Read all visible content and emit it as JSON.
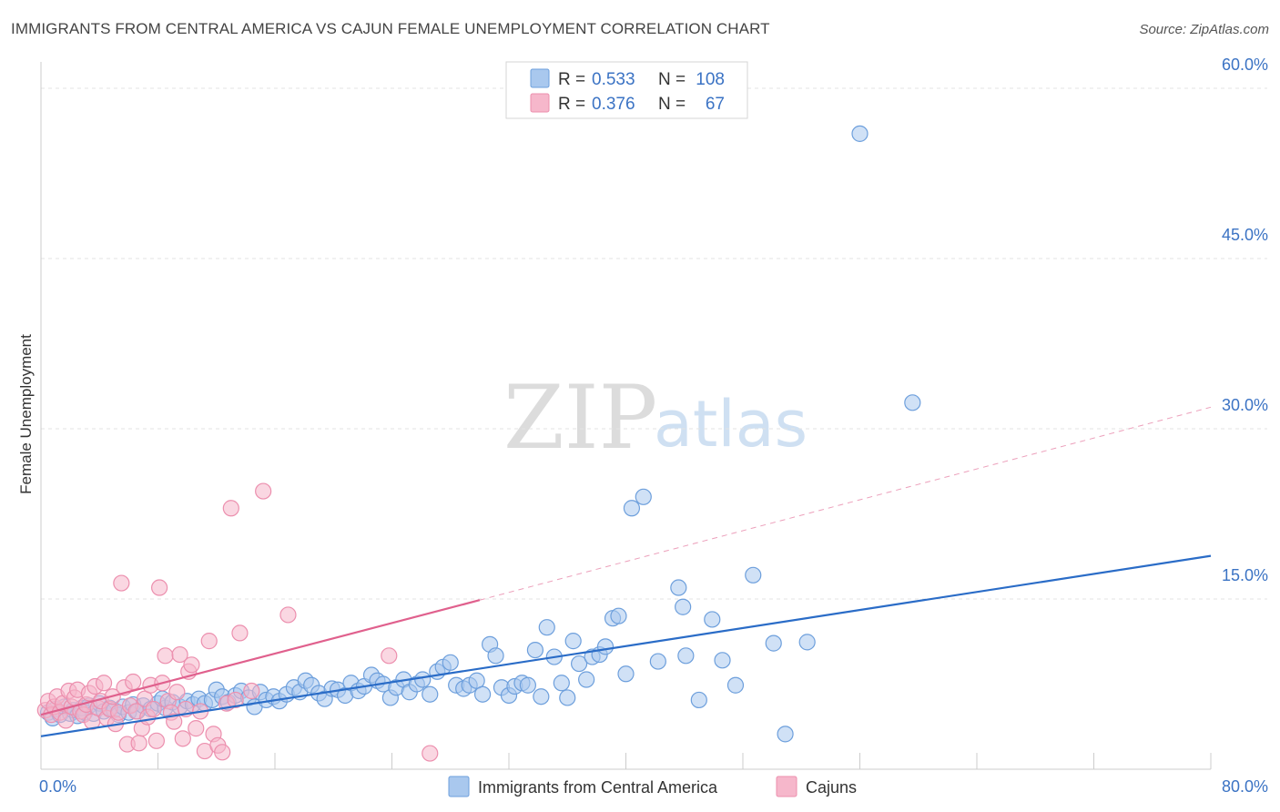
{
  "header": {
    "title": "IMMIGRANTS FROM CENTRAL AMERICA VS CAJUN FEMALE UNEMPLOYMENT CORRELATION CHART",
    "source": "Source: ZipAtlas.com"
  },
  "watermark": {
    "zip": "ZIP",
    "atlas": "atlas"
  },
  "colors": {
    "blue_fill": "#a9c8ee",
    "blue_stroke": "#6d9fdc",
    "blue_line": "#2a6cc7",
    "pink_fill": "#f6b7cb",
    "pink_stroke": "#ec8fae",
    "pink_line": "#e0608d",
    "tick_text": "#3b73c4",
    "grid": "#e3e3e3"
  },
  "legend": {
    "rows": [
      {
        "r_label": "R =",
        "r_value": "0.533",
        "n_label": "N =",
        "n_value": "108"
      },
      {
        "r_label": "R =",
        "r_value": "0.376",
        "n_label": "N =",
        "n_value": "67"
      }
    ]
  },
  "chart_data": {
    "type": "scatter",
    "ylabel": "Female Unemployment",
    "xlim": [
      0,
      80
    ],
    "ylim": [
      0,
      60
    ],
    "x_tick_labels": [
      {
        "value": 0,
        "label": "0.0%"
      },
      {
        "value": 80,
        "label": "80.0%"
      }
    ],
    "y_tick_labels": [
      {
        "value": 15,
        "label": "15.0%"
      },
      {
        "value": 30,
        "label": "30.0%"
      },
      {
        "value": 45,
        "label": "45.0%"
      },
      {
        "value": 60,
        "label": "60.0%"
      }
    ],
    "x_minor_ticks": [
      8,
      16,
      24,
      32,
      40,
      48,
      56,
      64,
      72,
      80
    ],
    "grid": true,
    "legend_position": "top-center",
    "series": [
      {
        "name": "Immigrants from Central America",
        "color": "#a9c8ee",
        "trend": {
          "x": [
            0,
            80
          ],
          "y": [
            2.9,
            18.8
          ],
          "style": "solid"
        },
        "points": [
          [
            0.5,
            5.0
          ],
          [
            0.8,
            4.5
          ],
          [
            1.0,
            5.3
          ],
          [
            1.3,
            4.8
          ],
          [
            1.6,
            5.5
          ],
          [
            2.0,
            4.9
          ],
          [
            2.2,
            5.2
          ],
          [
            2.5,
            4.7
          ],
          [
            2.8,
            5.4
          ],
          [
            3.0,
            5.0
          ],
          [
            3.3,
            5.6
          ],
          [
            3.6,
            4.9
          ],
          [
            4.0,
            5.8
          ],
          [
            4.3,
            5.1
          ],
          [
            4.7,
            5.4
          ],
          [
            5.0,
            5.2
          ],
          [
            5.3,
            4.8
          ],
          [
            5.6,
            5.5
          ],
          [
            6.0,
            5.0
          ],
          [
            6.3,
            5.7
          ],
          [
            6.6,
            5.1
          ],
          [
            7.0,
            5.6
          ],
          [
            7.5,
            5.3
          ],
          [
            8.0,
            5.8
          ],
          [
            8.5,
            5.4
          ],
          [
            8.3,
            6.2
          ],
          [
            9.0,
            5.9
          ],
          [
            9.5,
            5.5
          ],
          [
            10.0,
            6.0
          ],
          [
            10.4,
            5.7
          ],
          [
            10.8,
            6.2
          ],
          [
            11.2,
            5.8
          ],
          [
            11.7,
            6.1
          ],
          [
            12.0,
            7.0
          ],
          [
            12.4,
            6.4
          ],
          [
            12.8,
            5.9
          ],
          [
            13.3,
            6.5
          ],
          [
            13.7,
            6.9
          ],
          [
            14.2,
            6.3
          ],
          [
            14.6,
            5.5
          ],
          [
            15.0,
            6.8
          ],
          [
            15.4,
            6.1
          ],
          [
            15.9,
            6.4
          ],
          [
            16.3,
            6.0
          ],
          [
            16.8,
            6.6
          ],
          [
            17.3,
            7.2
          ],
          [
            17.7,
            6.8
          ],
          [
            18.1,
            7.8
          ],
          [
            18.5,
            7.4
          ],
          [
            19.0,
            6.7
          ],
          [
            19.4,
            6.2
          ],
          [
            19.9,
            7.1
          ],
          [
            20.3,
            7.0
          ],
          [
            20.8,
            6.5
          ],
          [
            21.2,
            7.6
          ],
          [
            21.7,
            6.9
          ],
          [
            22.1,
            7.3
          ],
          [
            22.6,
            8.3
          ],
          [
            23.0,
            7.8
          ],
          [
            23.4,
            7.5
          ],
          [
            23.9,
            6.3
          ],
          [
            24.3,
            7.2
          ],
          [
            24.8,
            7.9
          ],
          [
            25.2,
            6.8
          ],
          [
            25.7,
            7.5
          ],
          [
            26.1,
            7.9
          ],
          [
            26.6,
            6.6
          ],
          [
            27.1,
            8.6
          ],
          [
            27.5,
            9.0
          ],
          [
            28.0,
            9.4
          ],
          [
            28.4,
            7.4
          ],
          [
            28.9,
            7.1
          ],
          [
            29.3,
            7.4
          ],
          [
            29.8,
            7.8
          ],
          [
            30.2,
            6.6
          ],
          [
            30.7,
            11.0
          ],
          [
            31.1,
            10.0
          ],
          [
            31.5,
            7.2
          ],
          [
            32.0,
            6.5
          ],
          [
            32.4,
            7.3
          ],
          [
            32.9,
            7.6
          ],
          [
            33.3,
            7.4
          ],
          [
            33.8,
            10.5
          ],
          [
            34.2,
            6.4
          ],
          [
            34.6,
            12.5
          ],
          [
            35.1,
            9.9
          ],
          [
            35.6,
            7.6
          ],
          [
            36.0,
            6.3
          ],
          [
            36.4,
            11.3
          ],
          [
            36.8,
            9.3
          ],
          [
            37.3,
            7.9
          ],
          [
            37.7,
            9.9
          ],
          [
            38.2,
            10.1
          ],
          [
            38.6,
            10.8
          ],
          [
            39.1,
            13.3
          ],
          [
            39.5,
            13.5
          ],
          [
            40.0,
            8.4
          ],
          [
            40.4,
            23.0
          ],
          [
            41.2,
            24.0
          ],
          [
            42.2,
            9.5
          ],
          [
            43.6,
            16.0
          ],
          [
            43.9,
            14.3
          ],
          [
            44.1,
            10.0
          ],
          [
            45.0,
            6.1
          ],
          [
            45.9,
            13.2
          ],
          [
            46.6,
            9.6
          ],
          [
            47.5,
            7.4
          ],
          [
            48.7,
            17.1
          ],
          [
            50.1,
            11.1
          ],
          [
            50.9,
            3.1
          ],
          [
            52.4,
            11.2
          ],
          [
            56.0,
            56.0
          ],
          [
            59.6,
            32.3
          ]
        ]
      },
      {
        "name": "Cajuns",
        "color": "#f6b7cb",
        "trend": {
          "x": [
            0,
            30
          ],
          "y": [
            4.8,
            14.9
          ],
          "style": "solid",
          "extension": {
            "x": [
              30,
              80
            ],
            "y": [
              14.9,
              31.9
            ],
            "style": "dashed"
          }
        },
        "points": [
          [
            0.3,
            5.2
          ],
          [
            0.5,
            6.0
          ],
          [
            0.7,
            4.8
          ],
          [
            0.9,
            5.5
          ],
          [
            1.1,
            6.4
          ],
          [
            1.3,
            5.0
          ],
          [
            1.5,
            5.8
          ],
          [
            1.7,
            4.3
          ],
          [
            1.9,
            6.9
          ],
          [
            2.1,
            5.5
          ],
          [
            2.3,
            6.3
          ],
          [
            2.5,
            7.0
          ],
          [
            2.7,
            5.1
          ],
          [
            2.9,
            4.8
          ],
          [
            3.1,
            5.7
          ],
          [
            3.3,
            6.7
          ],
          [
            3.5,
            4.2
          ],
          [
            3.7,
            7.3
          ],
          [
            3.9,
            5.4
          ],
          [
            4.1,
            6.0
          ],
          [
            4.3,
            7.6
          ],
          [
            4.5,
            4.5
          ],
          [
            4.7,
            5.3
          ],
          [
            4.9,
            6.4
          ],
          [
            5.1,
            4.0
          ],
          [
            5.3,
            5.0
          ],
          [
            5.5,
            16.4
          ],
          [
            5.7,
            7.2
          ],
          [
            5.9,
            2.2
          ],
          [
            6.1,
            5.6
          ],
          [
            6.3,
            7.7
          ],
          [
            6.5,
            5.1
          ],
          [
            6.7,
            2.3
          ],
          [
            6.9,
            3.6
          ],
          [
            7.1,
            6.2
          ],
          [
            7.3,
            4.6
          ],
          [
            7.5,
            7.4
          ],
          [
            7.7,
            5.3
          ],
          [
            7.9,
            2.5
          ],
          [
            8.1,
            16.0
          ],
          [
            8.3,
            7.6
          ],
          [
            8.5,
            10.0
          ],
          [
            8.7,
            6.0
          ],
          [
            8.9,
            5.0
          ],
          [
            9.1,
            4.2
          ],
          [
            9.3,
            6.8
          ],
          [
            9.5,
            10.1
          ],
          [
            9.7,
            2.7
          ],
          [
            9.9,
            5.3
          ],
          [
            10.1,
            8.6
          ],
          [
            10.3,
            9.2
          ],
          [
            10.6,
            3.6
          ],
          [
            10.9,
            5.1
          ],
          [
            11.2,
            1.6
          ],
          [
            11.5,
            11.3
          ],
          [
            11.8,
            3.1
          ],
          [
            12.1,
            2.1
          ],
          [
            12.4,
            1.5
          ],
          [
            12.7,
            5.8
          ],
          [
            13.0,
            23.0
          ],
          [
            13.3,
            6.1
          ],
          [
            13.6,
            12.0
          ],
          [
            14.4,
            6.9
          ],
          [
            15.2,
            24.5
          ],
          [
            16.9,
            13.6
          ],
          [
            23.8,
            10.0
          ],
          [
            26.6,
            1.4
          ]
        ]
      }
    ]
  },
  "bottom_legend": {
    "items": [
      {
        "label": "Immigrants from Central America"
      },
      {
        "label": "Cajuns"
      }
    ]
  }
}
